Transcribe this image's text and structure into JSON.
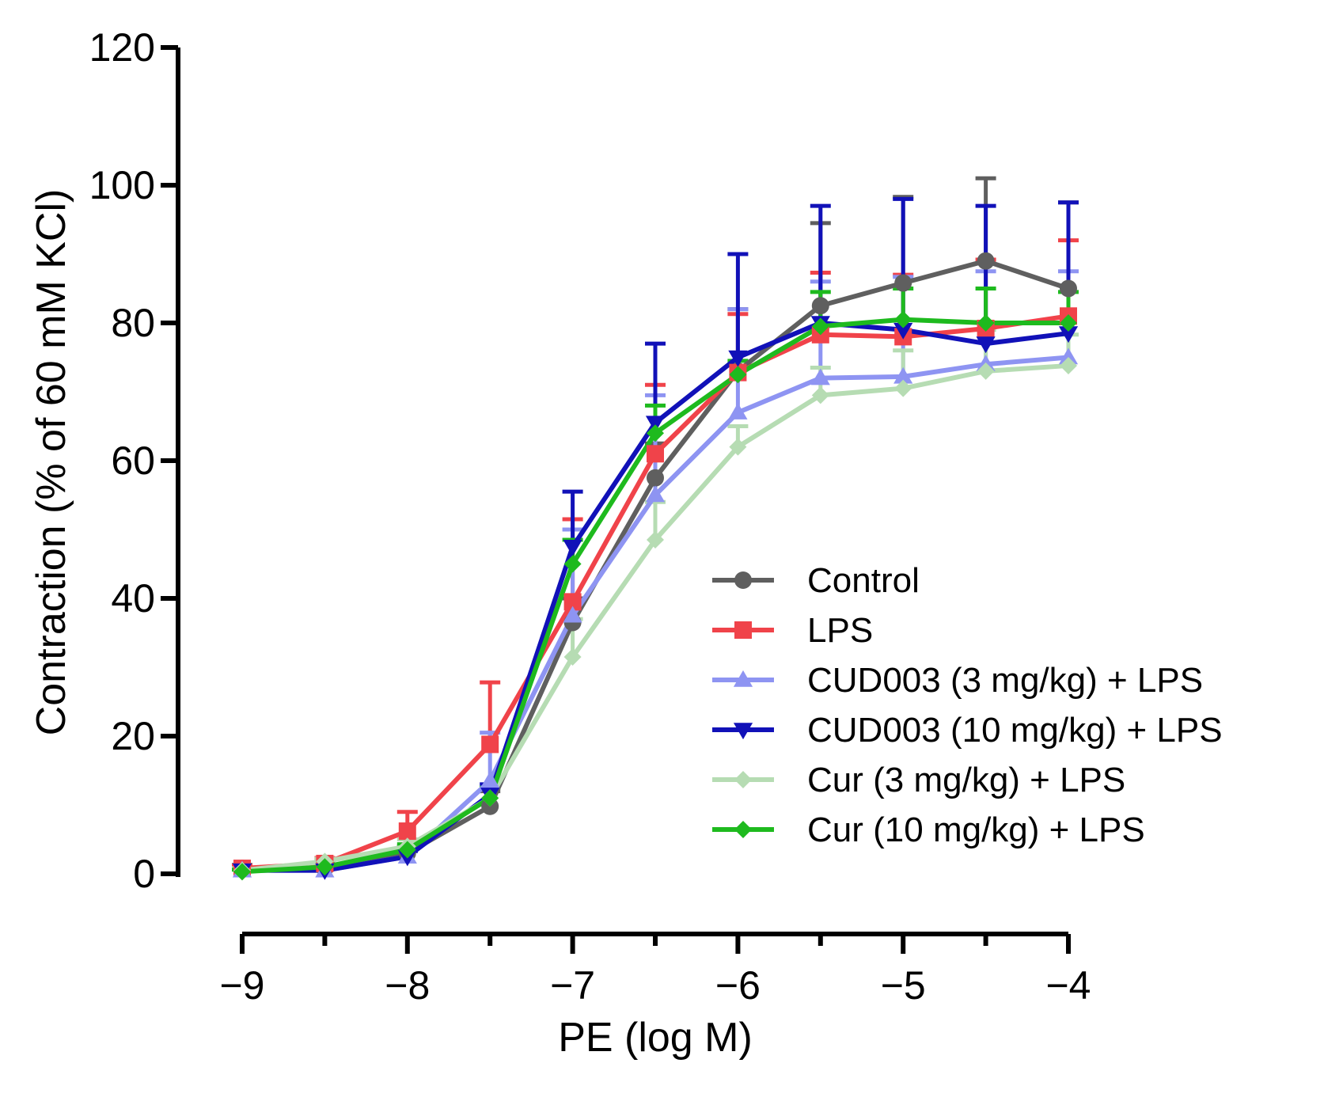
{
  "chart_data": {
    "type": "line",
    "title": "",
    "xlabel": "PE (log M)",
    "ylabel": "Contraction (% of 60 mM KCl)",
    "xlim": [
      -9,
      -4
    ],
    "ylim": [
      0,
      120
    ],
    "x": [
      -9,
      -8.5,
      -8,
      -7.5,
      -7,
      -6.5,
      -6,
      -5.5,
      -5,
      -4.5,
      -4
    ],
    "xticks": [
      -9,
      -8,
      -7,
      -6,
      -5,
      -4
    ],
    "xtick_labels": [
      "−9",
      "−8",
      "−7",
      "−6",
      "−5",
      "−4"
    ],
    "yticks": [
      0,
      20,
      40,
      60,
      80,
      100,
      120
    ],
    "ytick_labels": [
      "0",
      "20",
      "40",
      "60",
      "80",
      "100",
      "120"
    ],
    "legend_position": "center-right",
    "series": [
      {
        "name": "Control",
        "color": "#5f5f5f",
        "marker": "circle",
        "values": [
          0.8,
          0.8,
          3.0,
          9.8,
          36.5,
          57.5,
          73.0,
          82.5,
          85.8,
          89.0,
          85.0
        ],
        "errors": [
          0.5,
          0.5,
          1.0,
          2.2,
          3.5,
          5.0,
          9.0,
          12.0,
          12.5,
          12.0,
          12.5
        ]
      },
      {
        "name": "LPS",
        "color": "#f0434a",
        "marker": "square",
        "values": [
          0.8,
          1.5,
          6.2,
          18.8,
          39.5,
          61.0,
          72.8,
          78.3,
          78.0,
          79.2,
          81.0
        ],
        "errors": [
          0.4,
          0.8,
          2.8,
          9.0,
          12.0,
          10.0,
          8.5,
          9.0,
          9.0,
          10.0,
          11.0
        ]
      },
      {
        "name": "CUD003 (3 mg/kg) + LPS",
        "color": "#8e94f2",
        "marker": "triangle-up",
        "values": [
          0.5,
          0.5,
          2.5,
          13.5,
          37.5,
          55.0,
          67.0,
          72.0,
          72.2,
          74.0,
          75.0
        ],
        "errors": [
          0.3,
          0.4,
          0.8,
          7.0,
          12.5,
          14.5,
          15.0,
          14.0,
          14.5,
          13.5,
          12.5
        ]
      },
      {
        "name": "CUD003 (10 mg/kg) + LPS",
        "color": "#1111b8",
        "marker": "triangle-down",
        "values": [
          0.5,
          0.5,
          2.5,
          11.5,
          47.5,
          65.5,
          75.0,
          80.0,
          79.0,
          77.0,
          78.5
        ],
        "errors": [
          0.3,
          0.4,
          0.8,
          1.5,
          8.0,
          11.5,
          15.0,
          17.0,
          19.0,
          20.0,
          19.0
        ]
      },
      {
        "name": "Cur (3 mg/kg) + LPS",
        "color": "#b6dcb3",
        "marker": "diamond",
        "values": [
          0.5,
          1.8,
          4.0,
          11.0,
          31.5,
          48.5,
          62.0,
          69.5,
          70.5,
          73.0,
          73.8
        ],
        "errors": [
          0.3,
          0.4,
          1.0,
          1.5,
          5.5,
          5.5,
          3.0,
          4.0,
          5.5,
          6.0,
          4.5
        ]
      },
      {
        "name": "Cur (10 mg/kg) + LPS",
        "color": "#1eba1e",
        "marker": "diamond",
        "values": [
          0.3,
          1.0,
          3.5,
          11.0,
          45.0,
          64.0,
          72.5,
          79.5,
          80.5,
          80.0,
          80.0
        ],
        "errors": [
          0.3,
          0.4,
          0.8,
          1.5,
          3.5,
          4.0,
          2.0,
          5.0,
          4.5,
          5.0,
          4.5
        ]
      }
    ]
  }
}
